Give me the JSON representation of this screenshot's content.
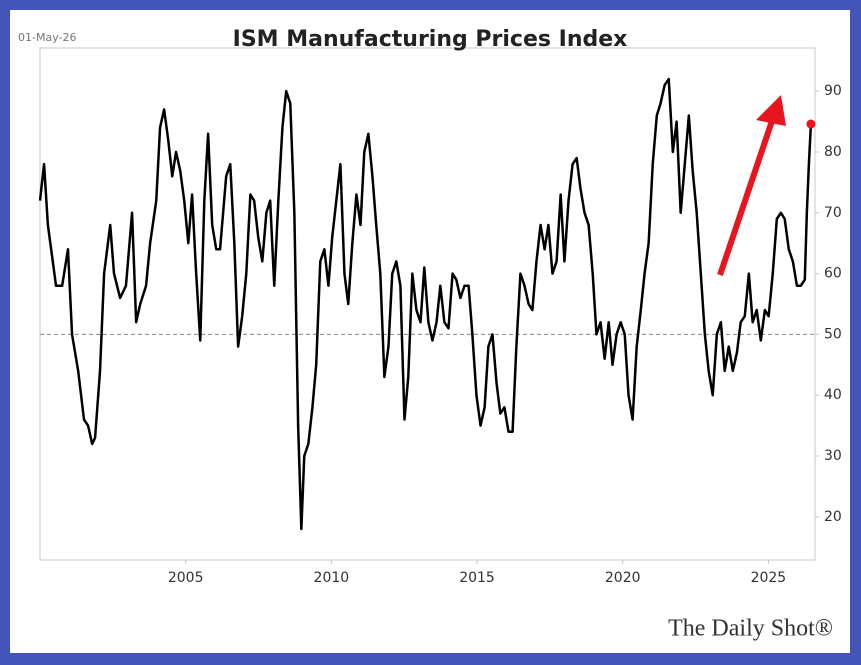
{
  "chart_data": {
    "type": "line",
    "title": "ISM Manufacturing Prices Index",
    "date_label": "01-May-26",
    "source": "The Daily Shot®",
    "color": "#000000",
    "last_point_color": "#e8141e",
    "reference_line": 50,
    "grid": false,
    "xlim": [
      2000,
      2026.6
    ],
    "xticks": [
      2005,
      2010,
      2015,
      2020,
      2025
    ],
    "ylim": [
      12.9,
      97.1
    ],
    "yticks": [
      20,
      30,
      40,
      50,
      60,
      70,
      80,
      90
    ],
    "x": [
      2000,
      2000.14,
      2000.27,
      2000.41,
      2000.55,
      2000.76,
      2000.96,
      2001.1,
      2001.31,
      2001.51,
      2001.65,
      2001.79,
      2001.89,
      2002.06,
      2002.2,
      2002.41,
      2002.54,
      2002.75,
      2002.95,
      2003.16,
      2003.3,
      2003.44,
      2003.64,
      2003.78,
      2003.99,
      2004.12,
      2004.26,
      2004.4,
      2004.54,
      2004.67,
      2004.81,
      2004.95,
      2005.09,
      2005.22,
      2005.36,
      2005.5,
      2005.64,
      2005.77,
      2005.91,
      2006.05,
      2006.18,
      2006.39,
      2006.53,
      2006.67,
      2006.8,
      2006.94,
      2007.08,
      2007.22,
      2007.35,
      2007.49,
      2007.63,
      2007.77,
      2007.9,
      2008.04,
      2008.18,
      2008.32,
      2008.45,
      2008.59,
      2008.73,
      2008.86,
      2008.97,
      2009.07,
      2009.21,
      2009.35,
      2009.48,
      2009.62,
      2009.76,
      2009.9,
      2010.03,
      2010.17,
      2010.31,
      2010.45,
      2010.58,
      2010.72,
      2010.86,
      2011,
      2011.13,
      2011.27,
      2011.41,
      2011.54,
      2011.68,
      2011.82,
      2011.96,
      2012.09,
      2012.23,
      2012.37,
      2012.51,
      2012.64,
      2012.78,
      2012.92,
      2013.06,
      2013.19,
      2013.33,
      2013.47,
      2013.61,
      2013.74,
      2013.88,
      2014.02,
      2014.16,
      2014.29,
      2014.43,
      2014.57,
      2014.71,
      2014.84,
      2014.98,
      2015.12,
      2015.26,
      2015.39,
      2015.53,
      2015.67,
      2015.8,
      2015.94,
      2016.08,
      2016.22,
      2016.35,
      2016.49,
      2016.63,
      2016.77,
      2016.9,
      2017.04,
      2017.18,
      2017.32,
      2017.45,
      2017.59,
      2017.73,
      2017.87,
      2018,
      2018.14,
      2018.28,
      2018.42,
      2018.55,
      2018.69,
      2018.83,
      2018.97,
      2019.1,
      2019.24,
      2019.38,
      2019.52,
      2019.65,
      2019.79,
      2019.93,
      2020.07,
      2020.2,
      2020.34,
      2020.48,
      2020.62,
      2020.75,
      2020.89,
      2021.03,
      2021.17,
      2021.3,
      2021.44,
      2021.58,
      2021.72,
      2021.85,
      2021.99,
      2022.13,
      2022.27,
      2022.4,
      2022.54,
      2022.68,
      2022.82,
      2022.95,
      2023.09,
      2023.23,
      2023.37,
      2023.5,
      2023.64,
      2023.78,
      2023.92,
      2024.05,
      2024.19,
      2024.33,
      2024.46,
      2024.6,
      2024.74,
      2024.88,
      2025.01,
      2025.15,
      2025.29,
      2025.43,
      2025.56,
      2025.7,
      2025.84,
      2025.98,
      2026.11,
      2026.25,
      2026.32,
      2026.39,
      2026.46
    ],
    "values": [
      72,
      78,
      68,
      63,
      58,
      58,
      64,
      50,
      44,
      36,
      35,
      32,
      33,
      44,
      60,
      68,
      60,
      56,
      58,
      70,
      52,
      55,
      58,
      65,
      72,
      84,
      87,
      82,
      76,
      80,
      77,
      72,
      65,
      73,
      60,
      49,
      72,
      83,
      68,
      64,
      64,
      76,
      78,
      65,
      48,
      53,
      60,
      73,
      72,
      66,
      62,
      70,
      72,
      58,
      72,
      84,
      90,
      88,
      70,
      35,
      18,
      30,
      32,
      38,
      45,
      62,
      64,
      58,
      66,
      72,
      78,
      60,
      55,
      65,
      73,
      68,
      80,
      83,
      76,
      68,
      60,
      43,
      48,
      60,
      62,
      58,
      36,
      43,
      60,
      54,
      52,
      61,
      52,
      49,
      52,
      58,
      52,
      51,
      60,
      59,
      56,
      58,
      58,
      50,
      40,
      35,
      38,
      48,
      50,
      42,
      37,
      38,
      34,
      34,
      48,
      60,
      58,
      55,
      54,
      62,
      68,
      64,
      68,
      60,
      62,
      73,
      62,
      72,
      78,
      79,
      74,
      70,
      68,
      60,
      50,
      52,
      46,
      52,
      45,
      50,
      52,
      50,
      40,
      36,
      48,
      54,
      60,
      65,
      78,
      86,
      88,
      91,
      92,
      80,
      85,
      70,
      78,
      86,
      77,
      70,
      60,
      50,
      44,
      40,
      50,
      52,
      44,
      48,
      44,
      47,
      52,
      53,
      60,
      52,
      54,
      49,
      54,
      53,
      60,
      69,
      70,
      69,
      64,
      62,
      58,
      58,
      59,
      70,
      78,
      84.6
    ]
  }
}
